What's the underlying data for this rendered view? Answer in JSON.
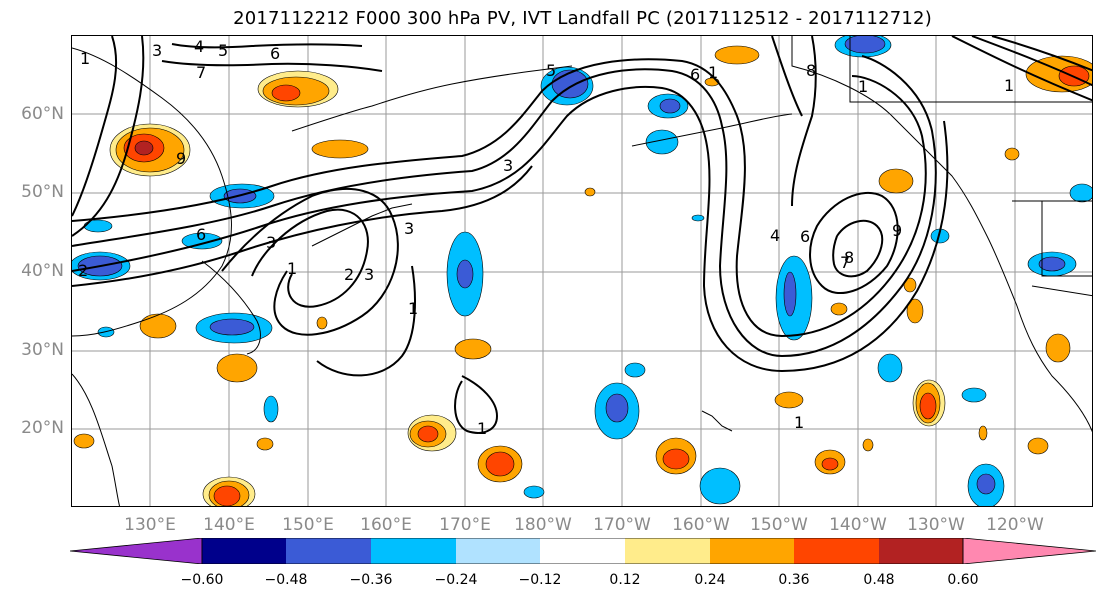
{
  "title": "2017112212 F000 300 hPa PV, IVT Landfall PC (2017112512 - 2017112712)",
  "lat_labels": [
    "60°N",
    "50°N",
    "40°N",
    "30°N",
    "20°N"
  ],
  "lon_labels": [
    "130°E",
    "140°E",
    "150°E",
    "160°E",
    "170°E",
    "180°W",
    "170°W",
    "160°W",
    "150°W",
    "140°W",
    "130°W",
    "120°W"
  ],
  "colorbar": {
    "ticks": [
      "−0.60",
      "−0.48",
      "−0.36",
      "−0.24",
      "−0.12",
      "0.12",
      "0.24",
      "0.36",
      "0.48",
      "0.60"
    ],
    "colors": [
      "#9932cc",
      "#00008b",
      "#3b5bd6",
      "#00bfff",
      "#b0e2ff",
      "#ffffff",
      "#ffec8b",
      "#ffa500",
      "#ff4500",
      "#b22222",
      "#ff88b0"
    ]
  },
  "contour_labels": [
    "3",
    "4",
    "5",
    "6",
    "7",
    "9",
    "1",
    "6",
    "3",
    "3",
    "2",
    "3",
    "1",
    "1",
    "1",
    "2",
    "3",
    "1",
    "4",
    "6",
    "7",
    "8",
    "9",
    "1",
    "5",
    "1",
    "6",
    "8",
    "1"
  ],
  "fill_colors": {
    "purple": "#9932cc",
    "navy": "#00008b",
    "blue": "#3b5bd6",
    "cyan": "#00bfff",
    "lightblue": "#b0e2ff",
    "yellow": "#ffec8b",
    "orange": "#ffa500",
    "redorange": "#ff4500",
    "darkred": "#b22222"
  }
}
